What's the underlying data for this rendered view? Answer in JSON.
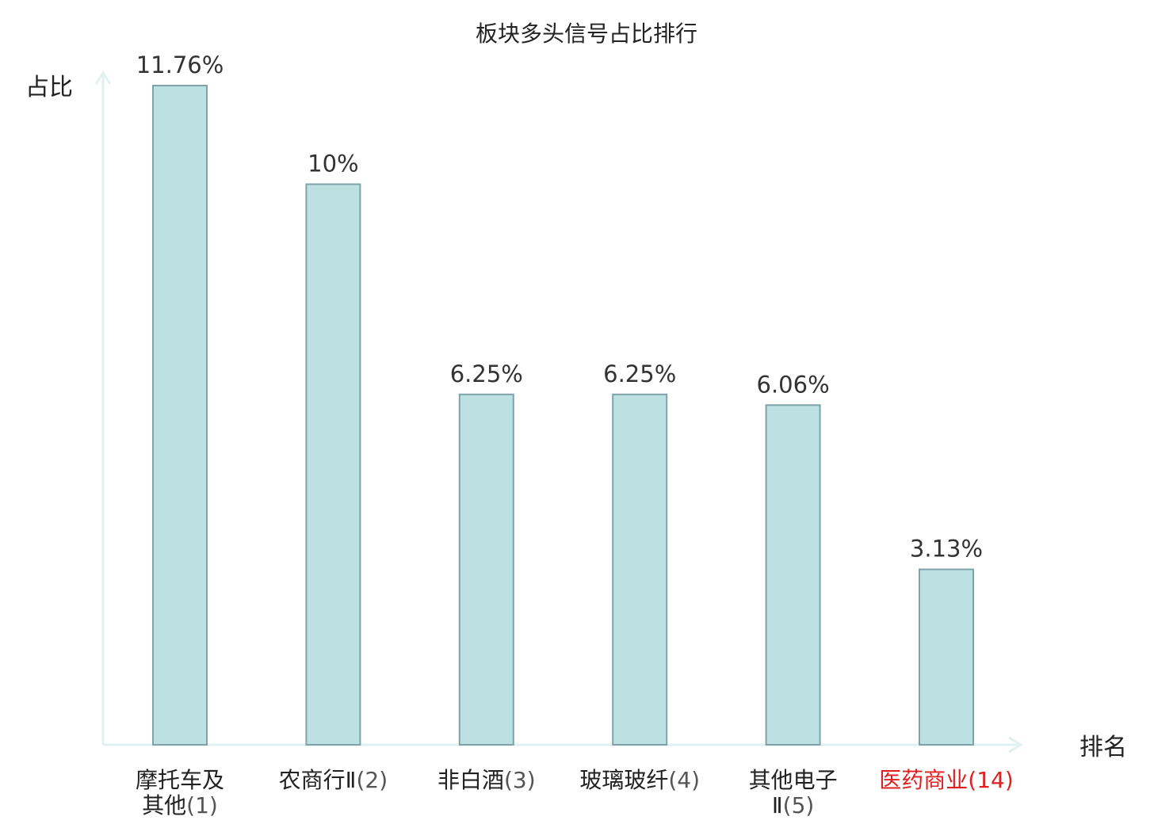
{
  "chart_data": {
    "type": "bar",
    "title": "板块多头信号占比排行",
    "xlabel": "排名",
    "ylabel": "占比",
    "categories": [
      {
        "lines": [
          {
            "name": "摩托车及"
          },
          {
            "name": "其他",
            "rank": "(1)"
          }
        ],
        "highlight": false
      },
      {
        "lines": [
          {
            "name": "农商行Ⅱ",
            "rank": "(2)"
          }
        ],
        "highlight": false
      },
      {
        "lines": [
          {
            "name": "非白酒",
            "rank": "(3)"
          }
        ],
        "highlight": false
      },
      {
        "lines": [
          {
            "name": "玻璃玻纤",
            "rank": "(4)"
          }
        ],
        "highlight": false
      },
      {
        "lines": [
          {
            "name": "其他电子"
          },
          {
            "name": "Ⅱ",
            "rank": "(5)"
          }
        ],
        "highlight": false
      },
      {
        "lines": [
          {
            "name": "医药商业",
            "rank": "(14)"
          }
        ],
        "highlight": true
      }
    ],
    "values": [
      11.76,
      10,
      6.25,
      6.25,
      6.06,
      3.13
    ],
    "value_labels": [
      "11.76%",
      "10%",
      "6.25%",
      "6.25%",
      "6.06%",
      "3.13%"
    ],
    "ylim": [
      0,
      11.76
    ],
    "grid": false,
    "colors": {
      "bar_fill": "#bde0e3",
      "bar_stroke": "#7fa3a8",
      "axis": "#dff2ef",
      "highlight": "#e02020",
      "rank_text": "#555555",
      "value_text": "#333333",
      "label_text": "#222222"
    }
  }
}
